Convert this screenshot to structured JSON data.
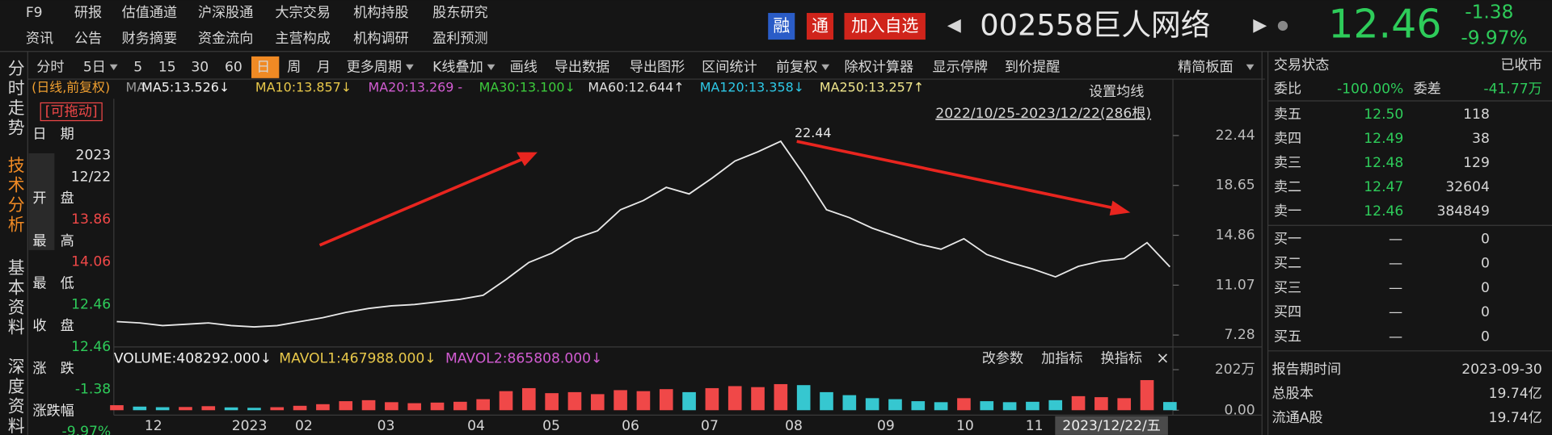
{
  "header": {
    "nav_row1": [
      "F9",
      "研报",
      "估值通道",
      "沪深股通",
      "大宗交易",
      "机构持股",
      "股东研究"
    ],
    "nav_row2": [
      "资讯",
      "公告",
      "财务摘要",
      "资金流向",
      "主营构成",
      "机构调研",
      "盈利预测"
    ],
    "badges": [
      "融",
      "通"
    ],
    "add_watch": "加入自选",
    "code": "002558",
    "name": "巨人网络",
    "price": "12.46",
    "change": "-1.38",
    "change_pct": "-9.97%"
  },
  "side_tabs": [
    "分时走势",
    "技术分析",
    "基本资料",
    "深度资料"
  ],
  "toolbar": [
    {
      "text": "分时"
    },
    {
      "text": "5日",
      "dropdown": true
    },
    {
      "text": "5"
    },
    {
      "text": "15"
    },
    {
      "text": "30"
    },
    {
      "text": "60"
    },
    {
      "text": "日",
      "active": true
    },
    {
      "text": "周"
    },
    {
      "text": "月"
    },
    {
      "text": "更多周期",
      "dropdown": true
    },
    {
      "text": "K线叠加",
      "dropdown": true
    },
    {
      "text": "画线"
    },
    {
      "text": "导出数据"
    },
    {
      "text": "导出图形"
    },
    {
      "text": "区间统计"
    },
    {
      "text": "前复权",
      "dropdown": true
    },
    {
      "text": "除权计算器"
    },
    {
      "text": "显示停牌"
    },
    {
      "text": "到价提醒"
    }
  ],
  "panel_toggle": "精简板面",
  "ma_legend": {
    "prefix": "(日线,前复权)",
    "label": "MA",
    "items": [
      {
        "text": "MA5:13.526↓",
        "color": "#f2f2f2"
      },
      {
        "text": "MA10:13.857↓",
        "color": "#e8c84a"
      },
      {
        "text": "MA20:13.269 -",
        "color": "#d25cd2"
      },
      {
        "text": "MA30:13.100↓",
        "color": "#3ccb3c"
      },
      {
        "text": "MA60:12.644↑",
        "color": "#e0e0e0"
      },
      {
        "text": "MA120:13.358↓",
        "color": "#2ec8e6"
      },
      {
        "text": "MA250:13.257↑",
        "color": "#f0e68c"
      }
    ]
  },
  "info": {
    "drag": "[可拖动]",
    "fields": [
      {
        "label": "日　期",
        "values": [
          "2023",
          "12/22"
        ],
        "color": "#e6e6e6"
      },
      {
        "label": "开　盘",
        "values": [
          "13.86"
        ],
        "color": "#f04848"
      },
      {
        "label": "最　高",
        "values": [
          "14.06"
        ],
        "color": "#f04848"
      },
      {
        "label": "最　低",
        "values": [
          "12.46"
        ],
        "color": "#2ecc5a"
      },
      {
        "label": "收　盘",
        "values": [
          "12.46"
        ],
        "color": "#2ecc5a"
      },
      {
        "label": "涨　跌",
        "values": [
          "-1.38"
        ],
        "color": "#2ecc5a"
      },
      {
        "label": "涨跌幅",
        "values": [
          "-9.97%"
        ],
        "color": "#2ecc5a"
      }
    ]
  },
  "chart_data": {
    "type": "line",
    "setting": "设置均线",
    "range": "2022/10/25-2023/12/22(286根)",
    "ylim": [
      6.45,
      25.22
    ],
    "yticks": [
      22.44,
      18.65,
      14.86,
      11.07,
      7.28
    ],
    "peak": 22.44,
    "color": "#e8e8e8",
    "values": [
      8.3,
      8.2,
      8.0,
      8.1,
      8.2,
      8.0,
      7.9,
      8.0,
      8.3,
      8.6,
      9.0,
      9.3,
      9.5,
      9.6,
      9.8,
      10.0,
      10.3,
      11.5,
      12.8,
      13.5,
      14.6,
      15.2,
      16.8,
      17.5,
      18.5,
      18.0,
      19.2,
      20.5,
      21.2,
      22.0,
      19.5,
      16.8,
      16.2,
      15.4,
      14.8,
      14.2,
      13.8,
      14.6,
      13.4,
      12.8,
      12.3,
      11.7,
      12.5,
      12.9,
      13.1,
      14.3,
      12.46
    ],
    "x_labels": [
      "12",
      "2023",
      "02",
      "03",
      "04",
      "05",
      "06",
      "07",
      "08",
      "09",
      "10",
      "11"
    ],
    "cursor_date": "2023/12/22/五",
    "volume": {
      "legend": [
        {
          "text": "VOLUME:408292.000↓",
          "color": "#f2f2f2"
        },
        {
          "text": "MAVOL1:467988.000↓",
          "color": "#e8c84a"
        },
        {
          "text": "MAVOL2:865808.000↓",
          "color": "#d25cd2"
        }
      ],
      "actions": [
        "改参数",
        "加指标",
        "换指标"
      ],
      "ylim": [
        0,
        230
      ],
      "yticks": [
        {
          "value": 202,
          "label": "202万"
        },
        {
          "value": 0,
          "label": "0.00"
        }
      ],
      "up_color": "#f04848",
      "down_color": "#36c7d0",
      "values": [
        25,
        18,
        15,
        16,
        20,
        14,
        12,
        15,
        22,
        30,
        45,
        50,
        40,
        35,
        38,
        42,
        55,
        95,
        110,
        85,
        90,
        80,
        100,
        95,
        105,
        90,
        110,
        120,
        115,
        130,
        125,
        90,
        75,
        60,
        55,
        45,
        40,
        60,
        45,
        40,
        42,
        50,
        70,
        65,
        60,
        150,
        40.8
      ]
    }
  },
  "quote": {
    "status_label": "交易状态",
    "status": "已收市",
    "weibi_label": "委比",
    "weibi": "-100.00%",
    "weicha_label": "委差",
    "weicha": "-41.77万",
    "asks": [
      {
        "label": "卖五",
        "price": "12.50",
        "vol": "118"
      },
      {
        "label": "卖四",
        "price": "12.49",
        "vol": "38"
      },
      {
        "label": "卖三",
        "price": "12.48",
        "vol": "129"
      },
      {
        "label": "卖二",
        "price": "12.47",
        "vol": "32604"
      },
      {
        "label": "卖一",
        "price": "12.46",
        "vol": "384849"
      }
    ],
    "bids": [
      {
        "label": "买一",
        "price": "—",
        "vol": "0"
      },
      {
        "label": "买二",
        "price": "—",
        "vol": "0"
      },
      {
        "label": "买三",
        "price": "—",
        "vol": "0"
      },
      {
        "label": "买四",
        "price": "—",
        "vol": "0"
      },
      {
        "label": "买五",
        "price": "—",
        "vol": "0"
      }
    ],
    "fundamentals": [
      {
        "label": "报告期时间",
        "value": "2023-09-30"
      },
      {
        "label": "总股本",
        "value": "19.74亿"
      },
      {
        "label": "流通A股",
        "value": "19.74亿"
      }
    ]
  }
}
